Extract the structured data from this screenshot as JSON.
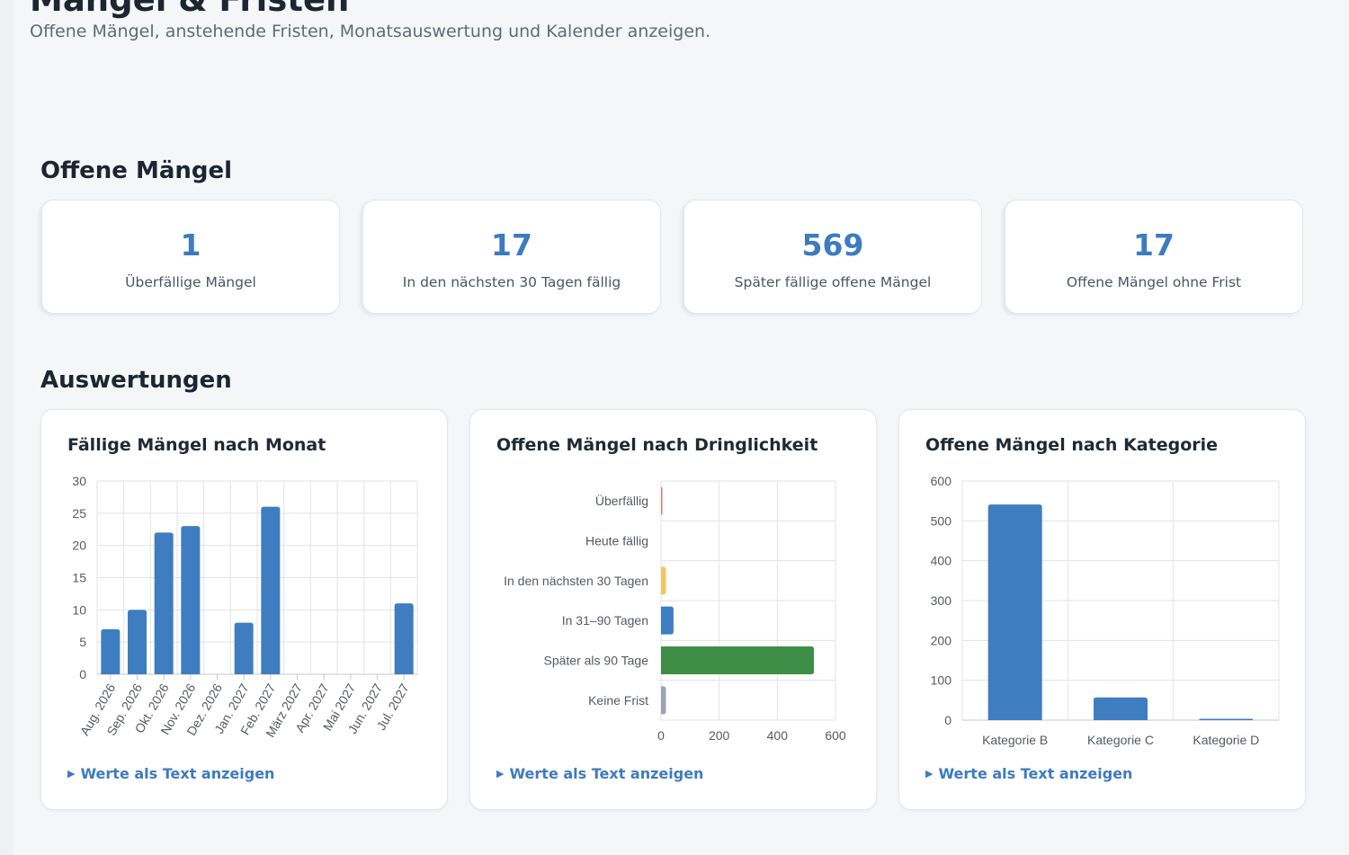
{
  "page": {
    "title": "Mängel & Fristen",
    "subtitle": "Offene Mängel, anstehende Fristen, Monatsauswertung und Kalender anzeigen."
  },
  "open_defects": {
    "heading": "Offene Mängel",
    "cards": [
      {
        "value": "1",
        "label": "Überfällige Mängel"
      },
      {
        "value": "17",
        "label": "In den nächsten 30 Tagen fällig"
      },
      {
        "value": "569",
        "label": "Später fällige offene Mängel"
      },
      {
        "value": "17",
        "label": "Offene Mängel ohne Frist"
      }
    ]
  },
  "evaluations": {
    "heading": "Auswertungen",
    "toggle_label": "Werte als Text anzeigen"
  },
  "colors": {
    "accent": "#3d7bbf",
    "bar_blue": "#3f7dc1",
    "green": "#3f8e48",
    "yellow": "#f1c75e",
    "red": "#e07a7a",
    "gray": "#9aa5b1",
    "grid": "#e3e3e3"
  },
  "chart_data": [
    {
      "type": "bar",
      "title": "Fällige Mängel nach Monat",
      "categories": [
        "Aug. 2026",
        "Sep. 2026",
        "Okt. 2026",
        "Nov. 2026",
        "Dez. 2026",
        "Jan. 2027",
        "Feb. 2027",
        "März 2027",
        "Apr. 2027",
        "Mai 2027",
        "Jun. 2027",
        "Jul. 2027"
      ],
      "values": [
        7,
        10,
        22,
        23,
        0,
        8,
        26,
        0,
        0,
        0,
        0,
        11
      ],
      "ylim": [
        0,
        30
      ],
      "yticks": [
        0,
        5,
        10,
        15,
        20,
        25,
        30
      ],
      "grid": true,
      "legend": false
    },
    {
      "type": "bar",
      "orientation": "horizontal",
      "title": "Offene Mängel nach Dringlichkeit",
      "categories": [
        "Überfällig",
        "Heute fällig",
        "In den nächsten 30 Tagen",
        "In 31–90 Tagen",
        "Später als 90 Tage",
        "Keine Frist"
      ],
      "values": [
        1,
        0,
        17,
        43,
        526,
        17
      ],
      "bar_colors": [
        "#e07a7a",
        "#e07a7a",
        "#f1c75e",
        "#3f7dc1",
        "#3f8e48",
        "#9aa5b1"
      ],
      "xlim": [
        0,
        600
      ],
      "xticks": [
        0,
        200,
        400,
        600
      ],
      "grid": true,
      "legend": false
    },
    {
      "type": "bar",
      "title": "Offene Mängel nach Kategorie",
      "categories": [
        "Kategorie B",
        "Kategorie C",
        "Kategorie D"
      ],
      "values": [
        541,
        57,
        2
      ],
      "ylim": [
        0,
        600
      ],
      "yticks": [
        0,
        100,
        200,
        300,
        400,
        500,
        600
      ],
      "grid": true,
      "legend": false
    }
  ]
}
